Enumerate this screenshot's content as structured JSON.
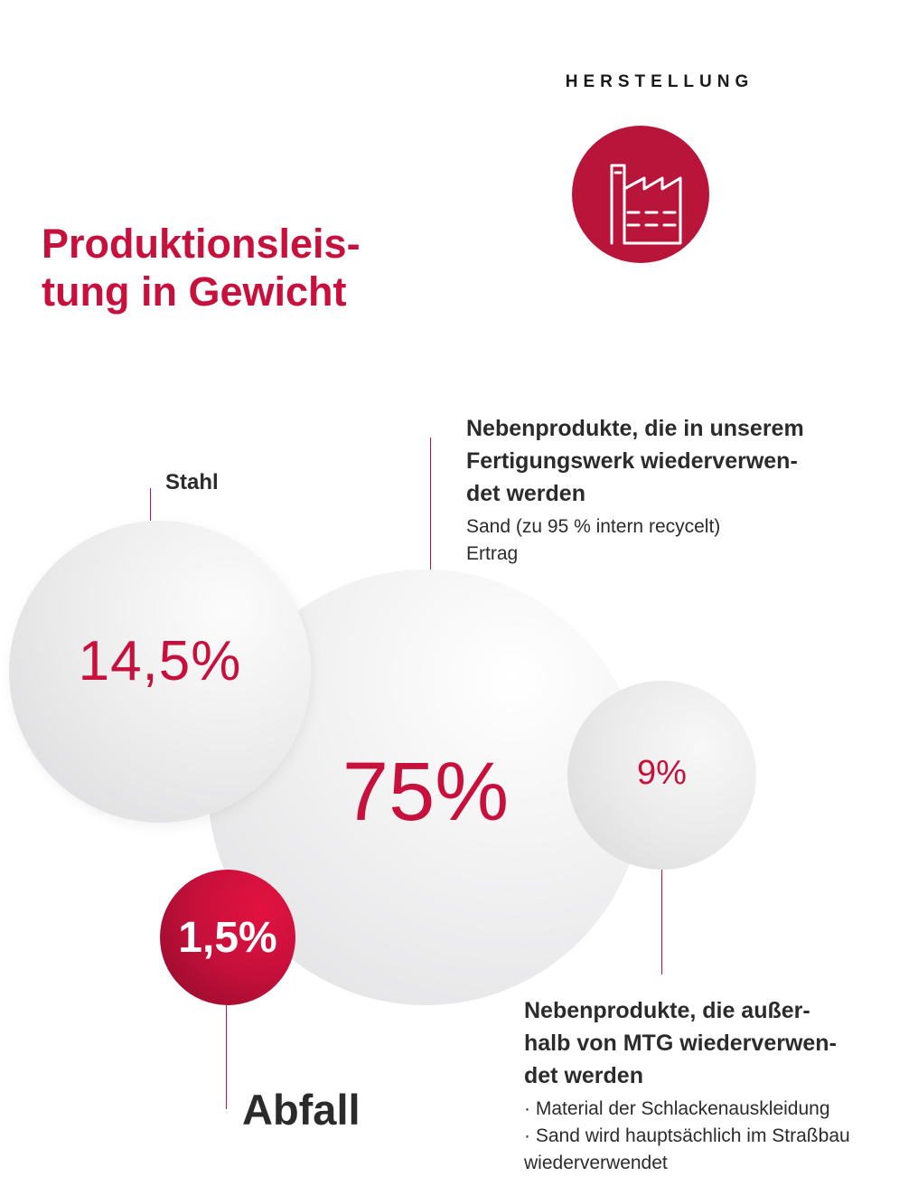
{
  "header": {
    "section_label": "HERSTELLUNG",
    "icon": "factory-icon",
    "title": "Produktionsleis-\ntung in Gewicht"
  },
  "colors": {
    "accent": "#c8103c",
    "badge": "#b9153a",
    "bubble_grey": "#e6e6e7",
    "text_dark": "#2b2b2b"
  },
  "chart_data": {
    "type": "bubble",
    "title": "Produktionsleistung in Gewicht",
    "unit": "%",
    "items": [
      {
        "id": "stahl",
        "label": "Stahl",
        "value": 14.5,
        "display": "14,5%"
      },
      {
        "id": "intern",
        "label": "Nebenprodukte, die in unserem Fertigungswerk wiederverwendet werden",
        "value": 75,
        "display": "75%"
      },
      {
        "id": "extern",
        "label": "Nebenprodukte, die außerhalb von MTG wiederverwendet werden",
        "value": 9,
        "display": "9%"
      },
      {
        "id": "abfall",
        "label": "Abfall",
        "value": 1.5,
        "display": "1,5%"
      }
    ]
  },
  "labels": {
    "stahl": "Stahl",
    "abfall": "Abfall"
  },
  "callouts": {
    "intern": {
      "title": "Nebenprodukte, die in unserem\nFertigungswerk wiederverwen-\ndet werden",
      "body": "Sand (zu 95 % intern recycelt)\nErtrag"
    },
    "extern": {
      "title": "Nebenprodukte, die außer-\nhalb von MTG wiederverwen-\ndet werden",
      "body": "· Material der Schlackenauskleidung\n· Sand wird hauptsächlich im Straßbau\nwiederverwendet"
    }
  }
}
